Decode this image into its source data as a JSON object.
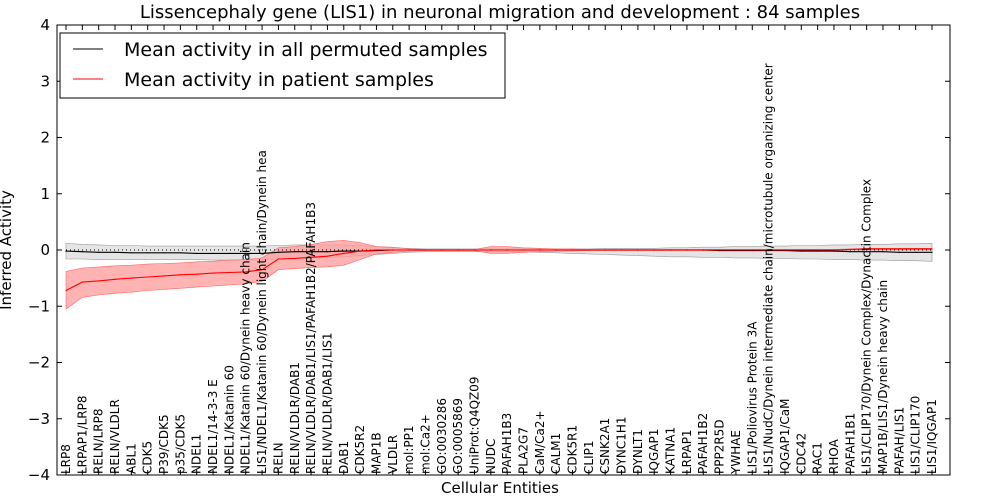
{
  "chart_data": {
    "type": "line",
    "title": "Lissencephaly gene (LIS1) in neuronal migration and development : 84 samples",
    "xlabel": "Cellular Entities",
    "ylabel": "Inferred Activity",
    "ylim": [
      -4,
      4
    ],
    "yticks": [
      -4,
      -3,
      -2,
      -1,
      0,
      1,
      2,
      3,
      4
    ],
    "legend_position": "top-left",
    "colors": {
      "permuted": "#000000",
      "patient": "#ff0000",
      "patient_band": "#ff9a9a",
      "permuted_band": "#cfcfcf"
    },
    "categories": [
      "LRP8",
      "LRPAP1/LRP8",
      "RELN/LRP8",
      "RELN/VLDLR",
      "ABL1",
      "CDK5",
      "P39/CDK5",
      "p35/CDK5",
      "NDEL1",
      "NDEL1/14-3-3 E",
      "NDEL1/Katanin 60",
      "NDEL1/Katanin 60/Dynein heavy chain",
      "LIS1/NDEL1/Katanin 60/Dynein light chain/Dynein hea",
      "RELN",
      "RELN/VLDLR/DAB1",
      "RELN/VLDLR/DAB1/LIS1/PAFAH1B2/PAFAH1B3",
      "RELN/VLDLR/DAB1/LIS1",
      "DAB1",
      "CDK5R2",
      "MAP1B",
      "VLDLR",
      "mol:PP1",
      "mol:Ca2+",
      "GO:0030286",
      "GO:0005869",
      "UniProt:Q4QZ09",
      "NUDC",
      "PAFAH1B3",
      "PLA2G7",
      "CaM/Ca2+",
      "CALM1",
      "CDK5R1",
      "CLIP1",
      "CSNK2A1",
      "DYNC1H1",
      "DYNLT1",
      "IQGAP1",
      "KATNA1",
      "LRPAP1",
      "PAFAH1B2",
      "PPP2R5D",
      "YWHAE",
      "LIS1/Poliovirus Protein 3A",
      "LIS1/NudC/Dynein intermediate chain/microtubule organizing center",
      "IQGAP1/CaM",
      "CDC42",
      "RAC1",
      "RHOA",
      "PAFAH1B1",
      "LIS1/CLIP170/Dynein Complex/Dynactin Complex",
      "MAP1B/LIS1/Dynein heavy chain",
      "PAFAH/LIS1",
      "LIS1/CLIP170",
      "LIS1/IQGAP1"
    ],
    "series": [
      {
        "name": "Mean activity in all permuted samples",
        "values": [
          -0.02,
          -0.03,
          -0.04,
          -0.04,
          -0.05,
          -0.05,
          -0.05,
          -0.05,
          -0.06,
          -0.06,
          -0.06,
          -0.06,
          -0.06,
          -0.04,
          -0.03,
          -0.03,
          -0.03,
          -0.02,
          -0.02,
          -0.01,
          0,
          0,
          0,
          0,
          0,
          0,
          0,
          0,
          0,
          0,
          0,
          0,
          0,
          0,
          0,
          0,
          0,
          0,
          0,
          0,
          -0.01,
          -0.01,
          -0.01,
          -0.01,
          -0.01,
          -0.02,
          -0.02,
          -0.02,
          -0.03,
          -0.03,
          -0.03,
          -0.04,
          -0.04,
          -0.04
        ],
        "band_upper": [
          0.12,
          0.1,
          0.09,
          0.08,
          0.08,
          0.07,
          0.07,
          0.07,
          0.07,
          0.07,
          0.07,
          0.07,
          0.07,
          0.08,
          0.09,
          0.09,
          0.09,
          0.09,
          0.08,
          0.06,
          0.04,
          0.03,
          0.02,
          0.02,
          0.02,
          0.02,
          0.02,
          0.02,
          0.02,
          0.02,
          0.02,
          0.02,
          0.02,
          0.03,
          0.03,
          0.03,
          0.03,
          0.04,
          0.04,
          0.05,
          0.05,
          0.06,
          0.06,
          0.07,
          0.07,
          0.08,
          0.08,
          0.09,
          0.09,
          0.1,
          0.1,
          0.11,
          0.11,
          0.12
        ],
        "band_lower": [
          -0.16,
          -0.16,
          -0.17,
          -0.17,
          -0.17,
          -0.17,
          -0.17,
          -0.17,
          -0.17,
          -0.18,
          -0.18,
          -0.18,
          -0.18,
          -0.16,
          -0.15,
          -0.14,
          -0.13,
          -0.12,
          -0.1,
          -0.08,
          -0.06,
          -0.04,
          -0.03,
          -0.03,
          -0.03,
          -0.03,
          -0.03,
          -0.03,
          -0.03,
          -0.04,
          -0.05,
          -0.06,
          -0.07,
          -0.08,
          -0.09,
          -0.1,
          -0.11,
          -0.12,
          -0.12,
          -0.13,
          -0.13,
          -0.14,
          -0.14,
          -0.15,
          -0.15,
          -0.16,
          -0.16,
          -0.17,
          -0.17,
          -0.18,
          -0.18,
          -0.19,
          -0.19,
          -0.2
        ]
      },
      {
        "name": "Mean activity in patient samples",
        "values": [
          -0.72,
          -0.57,
          -0.55,
          -0.52,
          -0.5,
          -0.48,
          -0.46,
          -0.44,
          -0.43,
          -0.41,
          -0.4,
          -0.39,
          -0.35,
          -0.16,
          -0.15,
          -0.13,
          -0.11,
          -0.06,
          -0.02,
          0,
          0,
          0,
          0,
          0,
          0,
          0,
          0,
          0,
          0,
          0,
          0,
          0,
          0,
          0,
          0,
          0,
          0,
          0,
          0,
          0,
          0,
          0,
          0,
          0,
          0,
          0,
          0,
          0,
          0.01,
          0.02,
          0.02,
          0.02,
          0.02,
          0.02
        ],
        "band_upper": [
          -0.38,
          -0.32,
          -0.3,
          -0.28,
          -0.27,
          -0.25,
          -0.24,
          -0.23,
          -0.21,
          -0.2,
          -0.18,
          -0.17,
          -0.14,
          0.04,
          0.06,
          0.1,
          0.15,
          0.17,
          0.13,
          0.06,
          0.05,
          0.02,
          0.01,
          0.01,
          0.01,
          0.01,
          0.06,
          0.06,
          0.04,
          0.03,
          0.02,
          0.02,
          0.01,
          0.01,
          0.01,
          0.01,
          0.01,
          0.01,
          0.01,
          0.01,
          0.01,
          0.01,
          0.01,
          0.01,
          0.01,
          0.01,
          0.01,
          0.01,
          0.02,
          0.03,
          0.03,
          0.03,
          0.03,
          0.03
        ],
        "band_lower": [
          -1.05,
          -0.84,
          -0.8,
          -0.77,
          -0.75,
          -0.72,
          -0.7,
          -0.68,
          -0.66,
          -0.64,
          -0.62,
          -0.6,
          -0.56,
          -0.35,
          -0.33,
          -0.31,
          -0.3,
          -0.27,
          -0.17,
          -0.07,
          -0.04,
          -0.02,
          -0.01,
          -0.01,
          -0.01,
          -0.01,
          -0.06,
          -0.06,
          -0.04,
          -0.03,
          -0.02,
          -0.02,
          -0.01,
          -0.01,
          -0.01,
          -0.01,
          -0.01,
          -0.01,
          -0.01,
          -0.01,
          -0.01,
          -0.01,
          -0.01,
          -0.01,
          -0.01,
          -0.01,
          -0.01,
          -0.01,
          0,
          0,
          0,
          0,
          0,
          0
        ]
      }
    ]
  }
}
